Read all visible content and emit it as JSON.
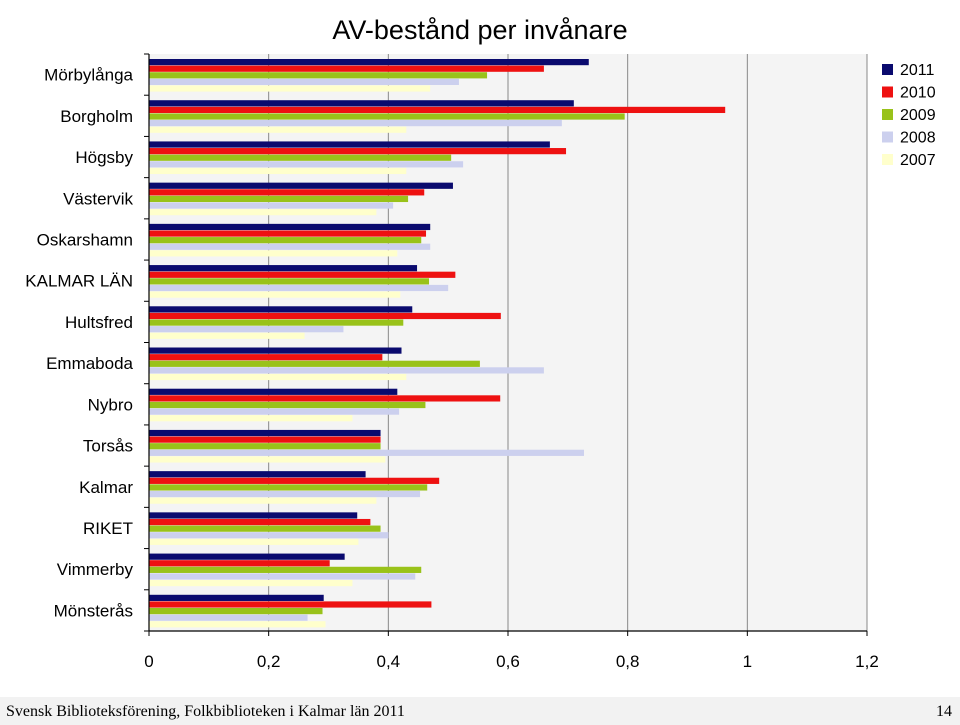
{
  "footer": {
    "text": "Svensk Biblioteksförening, Folkbiblioteken i Kalmar län 2011",
    "page_number": "14"
  },
  "colors": {
    "2011": "#0a0a6e",
    "2010": "#ee1111",
    "2009": "#99c21a",
    "2008": "#ccd0ee",
    "2007": "#ffffcc",
    "plot_bg": "#f4f4f4",
    "grid": "#888888"
  },
  "chart_data": {
    "type": "bar",
    "orientation": "horizontal",
    "title": "AV-bestånd per invånare",
    "xlabel": "",
    "ylabel": "",
    "xlim": [
      0,
      1.2
    ],
    "xticks": [
      "0",
      "0,2",
      "0,4",
      "0,6",
      "0,8",
      "1",
      "1,2"
    ],
    "grid": "vertical",
    "legend_position": "top-right",
    "categories": [
      "Mörbylånga",
      "Borgholm",
      "Högsby",
      "Västervik",
      "Oskarshamn",
      "KALMAR LÄN",
      "Hultsfred",
      "Emmaboda",
      "Nybro",
      "Torsås",
      "Kalmar",
      "RIKET",
      "Vimmerby",
      "Mönsterås"
    ],
    "series": [
      {
        "name": "2011",
        "values": [
          0.735,
          0.71,
          0.67,
          0.508,
          0.47,
          0.448,
          0.44,
          0.422,
          0.415,
          0.387,
          0.362,
          0.348,
          0.327,
          0.292
        ]
      },
      {
        "name": "2010",
        "values": [
          0.66,
          0.963,
          0.697,
          0.46,
          0.463,
          0.512,
          0.588,
          0.39,
          0.587,
          0.387,
          0.485,
          0.37,
          0.302,
          0.472
        ]
      },
      {
        "name": "2009",
        "values": [
          0.565,
          0.795,
          0.505,
          0.433,
          0.455,
          0.468,
          0.425,
          0.553,
          0.462,
          0.387,
          0.465,
          0.387,
          0.455,
          0.29
        ]
      },
      {
        "name": "2008",
        "values": [
          0.518,
          0.69,
          0.525,
          0.408,
          0.47,
          0.5,
          0.325,
          0.66,
          0.418,
          0.727,
          0.453,
          0.4,
          0.445,
          0.265
        ]
      },
      {
        "name": "2007",
        "values": [
          0.47,
          0.43,
          0.43,
          0.38,
          0.415,
          0.42,
          0.26,
          0.43,
          0.34,
          0.395,
          0.38,
          0.35,
          0.34,
          0.295
        ]
      }
    ]
  }
}
